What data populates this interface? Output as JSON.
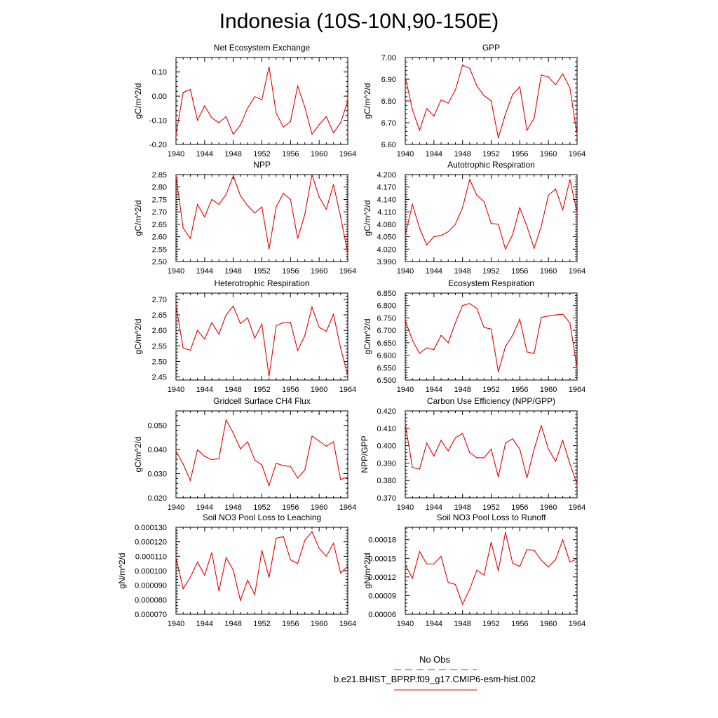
{
  "title": "Indonesia (10S-10N,90-150E)",
  "legend": {
    "obs_label": "No Obs",
    "obs_color": "#4a4ae6",
    "model_label": "b.e21.BHIST_BPRP.f09_g17.CMIP6-esm-hist.002",
    "model_color": "#e60000"
  },
  "chart_data": [
    {
      "type": "line",
      "title": "Net Ecosystem Exchange",
      "ylabel": "gC/m^2/d",
      "xlim": [
        1940,
        1964
      ],
      "ylim": [
        -0.2,
        0.16
      ],
      "xticks": [
        "1940",
        "1944",
        "1948",
        "1952",
        "1956",
        "1960",
        "1964"
      ],
      "yticks": [
        "-0.20",
        "-0.10",
        "0.00",
        "0.10"
      ],
      "ytick_values": [
        -0.2,
        -0.1,
        0.0,
        0.1
      ],
      "x": [
        1940,
        1941,
        1942,
        1943,
        1944,
        1945,
        1946,
        1947,
        1948,
        1949,
        1950,
        1951,
        1952,
        1953,
        1954,
        1955,
        1956,
        1957,
        1958,
        1959,
        1960,
        1961,
        1962,
        1963,
        1964
      ],
      "values": [
        -0.16,
        0.015,
        0.028,
        -0.1,
        -0.04,
        -0.09,
        -0.11,
        -0.085,
        -0.158,
        -0.12,
        -0.05,
        -0.002,
        -0.015,
        0.122,
        -0.07,
        -0.128,
        -0.105,
        0.042,
        -0.045,
        -0.158,
        -0.118,
        -0.085,
        -0.152,
        -0.11,
        -0.02
      ]
    },
    {
      "type": "line",
      "title": "GPP",
      "ylabel": "gC/m^2/d",
      "xlim": [
        1940,
        1964
      ],
      "ylim": [
        6.6,
        7.0
      ],
      "xticks": [
        "1940",
        "1944",
        "1948",
        "1952",
        "1956",
        "1960",
        "1964"
      ],
      "yticks": [
        "6.60",
        "6.70",
        "6.80",
        "6.90",
        "7.00"
      ],
      "ytick_values": [
        6.6,
        6.7,
        6.8,
        6.9,
        7.0
      ],
      "x": [
        1940,
        1941,
        1942,
        1943,
        1944,
        1945,
        1946,
        1947,
        1948,
        1949,
        1950,
        1951,
        1952,
        1953,
        1954,
        1955,
        1956,
        1957,
        1958,
        1959,
        1960,
        1961,
        1962,
        1963,
        1964
      ],
      "values": [
        6.91,
        6.76,
        6.665,
        6.765,
        6.73,
        6.805,
        6.79,
        6.85,
        6.965,
        6.95,
        6.87,
        6.825,
        6.8,
        6.63,
        6.74,
        6.83,
        6.865,
        6.665,
        6.72,
        6.92,
        6.91,
        6.875,
        6.925,
        6.86,
        6.645
      ]
    },
    {
      "type": "line",
      "title": "NPP",
      "ylabel": "gC/m^2/d",
      "xlim": [
        1940,
        1964
      ],
      "ylim": [
        2.5,
        2.85
      ],
      "xticks": [
        "1940",
        "1944",
        "1948",
        "1952",
        "1956",
        "1960",
        "1964"
      ],
      "yticks": [
        "2.50",
        "2.55",
        "2.60",
        "2.65",
        "2.70",
        "2.75",
        "2.80",
        "2.85"
      ],
      "ytick_values": [
        2.5,
        2.55,
        2.6,
        2.65,
        2.7,
        2.75,
        2.8,
        2.85
      ],
      "x": [
        1940,
        1941,
        1942,
        1943,
        1944,
        1945,
        1946,
        1947,
        1948,
        1949,
        1950,
        1951,
        1952,
        1953,
        1954,
        1955,
        1956,
        1957,
        1958,
        1959,
        1960,
        1961,
        1962,
        1963,
        1964
      ],
      "values": [
        2.845,
        2.635,
        2.593,
        2.73,
        2.68,
        2.75,
        2.73,
        2.77,
        2.845,
        2.765,
        2.725,
        2.695,
        2.72,
        2.55,
        2.72,
        2.775,
        2.75,
        2.593,
        2.69,
        2.85,
        2.76,
        2.71,
        2.81,
        2.68,
        2.535
      ]
    },
    {
      "type": "line",
      "title": "Autotrophic Respiration",
      "ylabel": "gC/m^2/d",
      "xlim": [
        1940,
        1964
      ],
      "ylim": [
        3.99,
        4.2
      ],
      "xticks": [
        "1940",
        "1944",
        "1948",
        "1952",
        "1956",
        "1960",
        "1964"
      ],
      "yticks": [
        "3.990",
        "4.020",
        "4.050",
        "4.080",
        "4.110",
        "4.140",
        "4.170",
        "4.200"
      ],
      "ytick_values": [
        3.99,
        4.02,
        4.05,
        4.08,
        4.11,
        4.14,
        4.17,
        4.2
      ],
      "x": [
        1940,
        1941,
        1942,
        1943,
        1944,
        1945,
        1946,
        1947,
        1948,
        1949,
        1950,
        1951,
        1952,
        1953,
        1954,
        1955,
        1956,
        1957,
        1958,
        1959,
        1960,
        1961,
        1962,
        1963,
        1964
      ],
      "values": [
        4.055,
        4.128,
        4.07,
        4.03,
        4.05,
        4.053,
        4.062,
        4.08,
        4.12,
        4.188,
        4.15,
        4.135,
        4.082,
        4.08,
        4.02,
        4.055,
        4.12,
        4.075,
        4.022,
        4.075,
        4.15,
        4.165,
        4.115,
        4.188,
        4.108
      ]
    },
    {
      "type": "line",
      "title": "Heterotrophic Respiration",
      "ylabel": "gC/m^2/d",
      "xlim": [
        1940,
        1964
      ],
      "ylim": [
        2.44,
        2.72
      ],
      "xticks": [
        "1940",
        "1944",
        "1948",
        "1952",
        "1956",
        "1960",
        "1964"
      ],
      "yticks": [
        "2.45",
        "2.50",
        "2.55",
        "2.60",
        "2.65",
        "2.70"
      ],
      "ytick_values": [
        2.45,
        2.5,
        2.55,
        2.6,
        2.65,
        2.7
      ],
      "x": [
        1940,
        1941,
        1942,
        1943,
        1944,
        1945,
        1946,
        1947,
        1948,
        1949,
        1950,
        1951,
        1952,
        1953,
        1954,
        1955,
        1956,
        1957,
        1958,
        1959,
        1960,
        1961,
        1962,
        1963,
        1964
      ],
      "values": [
        2.68,
        2.543,
        2.536,
        2.6,
        2.572,
        2.625,
        2.588,
        2.65,
        2.678,
        2.622,
        2.64,
        2.575,
        2.62,
        2.452,
        2.615,
        2.625,
        2.625,
        2.535,
        2.583,
        2.675,
        2.61,
        2.597,
        2.652,
        2.543,
        2.455
      ]
    },
    {
      "type": "line",
      "title": "Ecosystem Respiration",
      "ylabel": "gC/m^2/d",
      "xlim": [
        1940,
        1964
      ],
      "ylim": [
        6.5,
        6.85
      ],
      "xticks": [
        "1940",
        "1944",
        "1948",
        "1952",
        "1956",
        "1960",
        "1964"
      ],
      "yticks": [
        "6.500",
        "6.550",
        "6.600",
        "6.650",
        "6.700",
        "6.750",
        "6.800",
        "6.850"
      ],
      "ytick_values": [
        6.5,
        6.55,
        6.6,
        6.65,
        6.7,
        6.75,
        6.8,
        6.85
      ],
      "x": [
        1940,
        1941,
        1942,
        1943,
        1944,
        1945,
        1946,
        1947,
        1948,
        1949,
        1950,
        1951,
        1952,
        1953,
        1954,
        1955,
        1956,
        1957,
        1958,
        1959,
        1960,
        1961,
        1962,
        1963,
        1964
      ],
      "values": [
        6.74,
        6.66,
        6.607,
        6.63,
        6.622,
        6.68,
        6.65,
        6.73,
        6.8,
        6.808,
        6.788,
        6.712,
        6.705,
        6.533,
        6.635,
        6.68,
        6.745,
        6.613,
        6.607,
        6.752,
        6.758,
        6.762,
        6.765,
        6.73,
        6.55
      ]
    },
    {
      "type": "line",
      "title": "Gridcell Surface CH4 Flux",
      "ylabel": "gC/m^2/d",
      "xlim": [
        1940,
        1964
      ],
      "ylim": [
        0.02,
        0.056
      ],
      "xticks": [
        "1940",
        "1944",
        "1948",
        "1952",
        "1956",
        "1960",
        "1964"
      ],
      "yticks": [
        "0.020",
        "0.030",
        "0.040",
        "0.050"
      ],
      "ytick_values": [
        0.02,
        0.03,
        0.04,
        0.05
      ],
      "x": [
        1940,
        1941,
        1942,
        1943,
        1944,
        1945,
        1946,
        1947,
        1948,
        1949,
        1950,
        1951,
        1952,
        1953,
        1954,
        1955,
        1956,
        1957,
        1958,
        1959,
        1960,
        1961,
        1962,
        1963,
        1964
      ],
      "values": [
        0.0393,
        0.034,
        0.0272,
        0.0399,
        0.0372,
        0.0358,
        0.0362,
        0.0523,
        0.0468,
        0.0403,
        0.0432,
        0.0357,
        0.0336,
        0.025,
        0.0343,
        0.0333,
        0.033,
        0.0282,
        0.0315,
        0.0456,
        0.0435,
        0.0414,
        0.0432,
        0.0275,
        0.0287
      ]
    },
    {
      "type": "line",
      "title": "Carbon Use Efficiency (NPP/GPP)",
      "ylabel": "NPP/GPP",
      "xlim": [
        1940,
        1964
      ],
      "ylim": [
        0.37,
        0.42
      ],
      "xticks": [
        "1940",
        "1944",
        "1948",
        "1952",
        "1956",
        "1960",
        "1964"
      ],
      "yticks": [
        "0.370",
        "0.380",
        "0.390",
        "0.400",
        "0.410",
        "0.420"
      ],
      "ytick_values": [
        0.37,
        0.38,
        0.39,
        0.4,
        0.41,
        0.42
      ],
      "x": [
        1940,
        1941,
        1942,
        1943,
        1944,
        1945,
        1946,
        1947,
        1948,
        1949,
        1950,
        1951,
        1952,
        1953,
        1954,
        1955,
        1956,
        1957,
        1958,
        1959,
        1960,
        1961,
        1962,
        1963,
        1964
      ],
      "values": [
        0.4125,
        0.3875,
        0.3865,
        0.4015,
        0.394,
        0.403,
        0.397,
        0.4045,
        0.407,
        0.396,
        0.393,
        0.393,
        0.398,
        0.382,
        0.4015,
        0.404,
        0.398,
        0.3815,
        0.398,
        0.4115,
        0.398,
        0.391,
        0.403,
        0.3895,
        0.378
      ]
    },
    {
      "type": "line",
      "title": "Soil NO3 Pool Loss to Leaching",
      "ylabel": "gN/m^2/d",
      "xlim": [
        1940,
        1964
      ],
      "ylim": [
        7e-05,
        0.00013
      ],
      "xticks": [
        "1940",
        "1944",
        "1948",
        "1952",
        "1956",
        "1960",
        "1964"
      ],
      "yticks": [
        "0.000070",
        "0.000080",
        "0.000090",
        "0.000100",
        "0.000110",
        "0.000120",
        "0.000130"
      ],
      "ytick_values": [
        7e-05,
        8e-05,
        9e-05,
        0.0001,
        0.00011,
        0.00012,
        0.00013
      ],
      "x": [
        1940,
        1941,
        1942,
        1943,
        1944,
        1945,
        1946,
        1947,
        1948,
        1949,
        1950,
        1951,
        1952,
        1953,
        1954,
        1955,
        1956,
        1957,
        1958,
        1959,
        1960,
        1961,
        1962,
        1963,
        1964
      ],
      "values": [
        0.000109,
        8.75e-05,
        9.55e-05,
        0.000106,
        9.7e-05,
        0.0001125,
        8.6e-05,
        0.000109,
        0.0001005,
        7.95e-05,
        9.35e-05,
        8.35e-05,
        0.000114,
        9.55e-05,
        0.0001225,
        0.0001235,
        0.0001075,
        0.000105,
        0.000121,
        0.000127,
        0.0001155,
        0.00011,
        0.000119,
        9.85e-05,
        0.000103
      ]
    },
    {
      "type": "line",
      "title": "Soil NO3 Pool Loss to Runoff",
      "ylabel": "gN/m^2/d",
      "xlim": [
        1940,
        1964
      ],
      "ylim": [
        6e-05,
        0.0002
      ],
      "xticks": [
        "1940",
        "1944",
        "1948",
        "1952",
        "1956",
        "1960",
        "1964"
      ],
      "yticks": [
        "0.00006",
        "0.00009",
        "0.00012",
        "0.00015",
        "0.00018"
      ],
      "ytick_values": [
        6e-05,
        9e-05,
        0.00012,
        0.00015,
        0.00018
      ],
      "x": [
        1940,
        1941,
        1942,
        1943,
        1944,
        1945,
        1946,
        1947,
        1948,
        1949,
        1950,
        1951,
        1952,
        1953,
        1954,
        1955,
        1956,
        1957,
        1958,
        1959,
        1960,
        1961,
        1962,
        1963,
        1964
      ],
      "values": [
        0.000139,
        0.000118,
        0.000161,
        0.000141,
        0.000141,
        0.000153,
        0.000111,
        0.000108,
        7.6e-05,
        0.0001,
        0.000131,
        0.000123,
        0.000176,
        0.00013,
        0.000192,
        0.000142,
        0.000137,
        0.000164,
        0.000163,
        0.000147,
        0.000136,
        0.000148,
        0.00018,
        0.000144,
        0.000149
      ]
    }
  ]
}
